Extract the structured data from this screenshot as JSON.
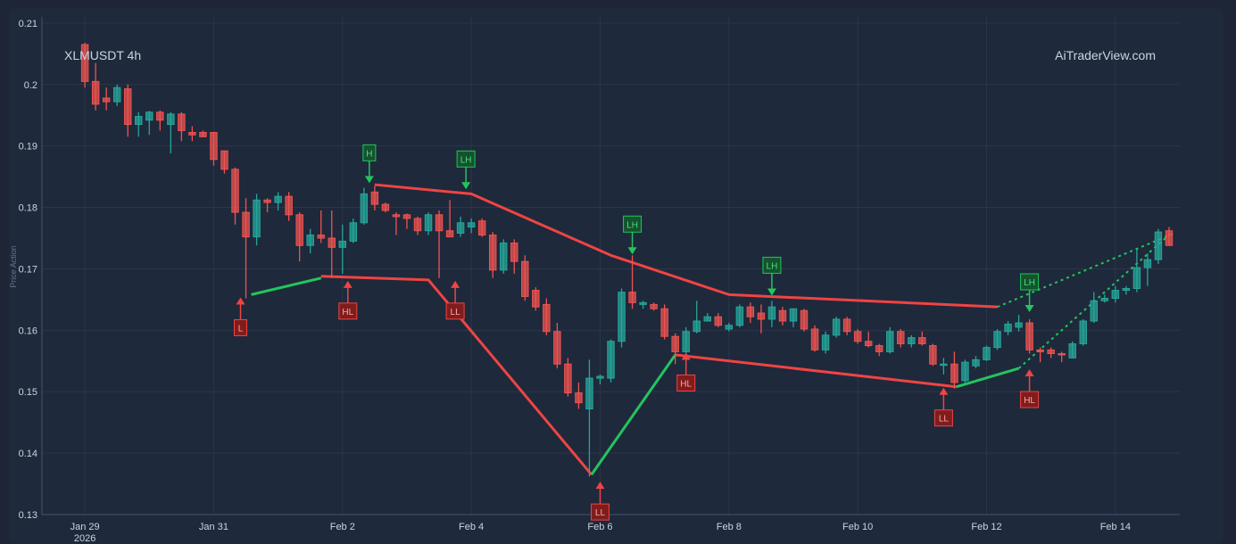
{
  "chart_data": {
    "type": "candlestick",
    "symbol_label": "XLMUSDT 4h",
    "watermark": "AiTraderView.com",
    "ylabel": "Price Action",
    "ylim": [
      0.13,
      0.211
    ],
    "yticks": [
      0.13,
      0.14,
      0.15,
      0.16,
      0.17,
      0.18,
      0.19,
      0.2,
      0.21
    ],
    "ytick_labels": [
      "0.13",
      "0.14",
      "0.15",
      "0.16",
      "0.17",
      "0.18",
      "0.19",
      "0.2",
      "0.21"
    ],
    "xlim": [
      -4,
      102
    ],
    "xticks": [
      {
        "x": 0,
        "label": "Jan 29",
        "sublabel": "2026"
      },
      {
        "x": 12,
        "label": "Jan 31"
      },
      {
        "x": 24,
        "label": "Feb 2"
      },
      {
        "x": 36,
        "label": "Feb 4"
      },
      {
        "x": 48,
        "label": "Feb 6"
      },
      {
        "x": 60,
        "label": "Feb 8"
      },
      {
        "x": 72,
        "label": "Feb 10"
      },
      {
        "x": 84,
        "label": "Feb 12"
      },
      {
        "x": 96,
        "label": "Feb 14"
      }
    ],
    "colors": {
      "up": "#26a69a",
      "down": "#ef5350",
      "resistance": "#ef4444",
      "support_red": "#ef4444",
      "support_green": "#22c55e",
      "projection": "#22c55e",
      "grid": "#2b3648",
      "background": "#1e293b"
    },
    "candles": [
      [
        0.2065,
        0.2068,
        0.1995,
        0.2005
      ],
      [
        0.2005,
        0.2035,
        0.1958,
        0.1968
      ],
      [
        0.1978,
        0.1995,
        0.1958,
        0.1972
      ],
      [
        0.1972,
        0.2,
        0.1965,
        0.1995
      ],
      [
        0.1993,
        0.2,
        0.1915,
        0.1935
      ],
      [
        0.1935,
        0.1955,
        0.1915,
        0.1948
      ],
      [
        0.1942,
        0.1957,
        0.1918,
        0.1955
      ],
      [
        0.1955,
        0.1958,
        0.1925,
        0.1942
      ],
      [
        0.1935,
        0.1955,
        0.1888,
        0.1952
      ],
      [
        0.1952,
        0.1955,
        0.1908,
        0.1925
      ],
      [
        0.1922,
        0.1932,
        0.1908,
        0.1918
      ],
      [
        0.1922,
        0.1925,
        0.1915,
        0.1915
      ],
      [
        0.1922,
        0.1922,
        0.1868,
        0.1878
      ],
      [
        0.1892,
        0.1892,
        0.1855,
        0.1862
      ],
      [
        0.1862,
        0.1865,
        0.1772,
        0.1792
      ],
      [
        0.1792,
        0.1815,
        0.1652,
        0.1752
      ],
      [
        0.1752,
        0.1822,
        0.1738,
        0.1812
      ],
      [
        0.1812,
        0.1815,
        0.1792,
        0.1808
      ],
      [
        0.1808,
        0.1825,
        0.1795,
        0.1818
      ],
      [
        0.1818,
        0.1825,
        0.1778,
        0.1788
      ],
      [
        0.1788,
        0.1792,
        0.1712,
        0.1738
      ],
      [
        0.1738,
        0.1765,
        0.1725,
        0.1755
      ],
      [
        0.1755,
        0.1795,
        0.1742,
        0.175
      ],
      [
        0.175,
        0.1795,
        0.1685,
        0.1735
      ],
      [
        0.1735,
        0.1772,
        0.1692,
        0.1745
      ],
      [
        0.1745,
        0.1782,
        0.1742,
        0.1775
      ],
      [
        0.1775,
        0.1832,
        0.1772,
        0.1822
      ],
      [
        0.1825,
        0.1835,
        0.1795,
        0.1805
      ],
      [
        0.1805,
        0.1808,
        0.1792,
        0.1795
      ],
      [
        0.1788,
        0.1792,
        0.1755,
        0.1785
      ],
      [
        0.1788,
        0.179,
        0.1765,
        0.1782
      ],
      [
        0.1782,
        0.1785,
        0.1755,
        0.1762
      ],
      [
        0.1762,
        0.1792,
        0.1755,
        0.1788
      ],
      [
        0.1788,
        0.1795,
        0.1685,
        0.1762
      ],
      [
        0.1762,
        0.1812,
        0.1755,
        0.1752
      ],
      [
        0.1758,
        0.1785,
        0.1752,
        0.1775
      ],
      [
        0.1768,
        0.1782,
        0.1758,
        0.1775
      ],
      [
        0.1778,
        0.1782,
        0.1752,
        0.1755
      ],
      [
        0.1755,
        0.176,
        0.1685,
        0.1698
      ],
      [
        0.1698,
        0.1748,
        0.1692,
        0.1742
      ],
      [
        0.1742,
        0.1748,
        0.1692,
        0.1712
      ],
      [
        0.1712,
        0.1722,
        0.1648,
        0.1655
      ],
      [
        0.1665,
        0.167,
        0.1632,
        0.1638
      ],
      [
        0.1642,
        0.1652,
        0.1592,
        0.1598
      ],
      [
        0.1598,
        0.1612,
        0.1538,
        0.1545
      ],
      [
        0.1545,
        0.1555,
        0.1492,
        0.1498
      ],
      [
        0.1498,
        0.1515,
        0.1472,
        0.1482
      ],
      [
        0.1472,
        0.1552,
        0.1362,
        0.1522
      ],
      [
        0.1522,
        0.1528,
        0.1512,
        0.1525
      ],
      [
        0.1522,
        0.1585,
        0.1515,
        0.1582
      ],
      [
        0.1582,
        0.1668,
        0.1572,
        0.1662
      ],
      [
        0.1662,
        0.1722,
        0.1635,
        0.1645
      ],
      [
        0.1642,
        0.1648,
        0.1635,
        0.1645
      ],
      [
        0.1642,
        0.1645,
        0.1632,
        0.1635
      ],
      [
        0.1635,
        0.1642,
        0.1585,
        0.159
      ],
      [
        0.159,
        0.1595,
        0.1545,
        0.1565
      ],
      [
        0.1565,
        0.1605,
        0.1552,
        0.1598
      ],
      [
        0.1598,
        0.1648,
        0.1595,
        0.1615
      ],
      [
        0.1615,
        0.1628,
        0.1615,
        0.1622
      ],
      [
        0.1622,
        0.1628,
        0.1605,
        0.1608
      ],
      [
        0.1602,
        0.1612,
        0.1598,
        0.1608
      ],
      [
        0.1608,
        0.1642,
        0.1605,
        0.1638
      ],
      [
        0.1638,
        0.1645,
        0.1612,
        0.1622
      ],
      [
        0.1628,
        0.1642,
        0.1595,
        0.1618
      ],
      [
        0.1618,
        0.1648,
        0.1605,
        0.1638
      ],
      [
        0.1632,
        0.1638,
        0.1608,
        0.1615
      ],
      [
        0.1615,
        0.1635,
        0.1605,
        0.1635
      ],
      [
        0.1632,
        0.1635,
        0.1598,
        0.1602
      ],
      [
        0.1602,
        0.1608,
        0.1565,
        0.1568
      ],
      [
        0.1568,
        0.1598,
        0.1562,
        0.1592
      ],
      [
        0.1592,
        0.1622,
        0.1588,
        0.1618
      ],
      [
        0.1618,
        0.1622,
        0.1592,
        0.1598
      ],
      [
        0.1598,
        0.1602,
        0.1578,
        0.1582
      ],
      [
        0.1582,
        0.1598,
        0.1572,
        0.1575
      ],
      [
        0.1575,
        0.1578,
        0.1558,
        0.1565
      ],
      [
        0.1565,
        0.1605,
        0.1562,
        0.1598
      ],
      [
        0.1598,
        0.1602,
        0.1572,
        0.1578
      ],
      [
        0.1578,
        0.1592,
        0.1572,
        0.1588
      ],
      [
        0.1588,
        0.1598,
        0.1575,
        0.1578
      ],
      [
        0.1575,
        0.1578,
        0.1542,
        0.1545
      ],
      [
        0.1545,
        0.1555,
        0.1528,
        0.1545
      ],
      [
        0.1545,
        0.1565,
        0.1505,
        0.1515
      ],
      [
        0.1518,
        0.1552,
        0.1512,
        0.1548
      ],
      [
        0.1542,
        0.1558,
        0.1538,
        0.1552
      ],
      [
        0.1552,
        0.1575,
        0.155,
        0.1572
      ],
      [
        0.1572,
        0.1602,
        0.1568,
        0.1598
      ],
      [
        0.1598,
        0.1615,
        0.1592,
        0.161
      ],
      [
        0.1605,
        0.1625,
        0.1598,
        0.1612
      ],
      [
        0.1612,
        0.1618,
        0.1562,
        0.1568
      ],
      [
        0.1568,
        0.1572,
        0.1548,
        0.1565
      ],
      [
        0.1568,
        0.1572,
        0.1555,
        0.1562
      ],
      [
        0.1562,
        0.1565,
        0.1548,
        0.156
      ],
      [
        0.1555,
        0.1582,
        0.1555,
        0.1578
      ],
      [
        0.1578,
        0.1618,
        0.1575,
        0.1615
      ],
      [
        0.1615,
        0.1662,
        0.1612,
        0.1648
      ],
      [
        0.1648,
        0.1658,
        0.1645,
        0.1652
      ],
      [
        0.1652,
        0.1672,
        0.1645,
        0.1665
      ],
      [
        0.1665,
        0.1672,
        0.1658,
        0.1668
      ],
      [
        0.1668,
        0.1732,
        0.1662,
        0.1702
      ],
      [
        0.1702,
        0.1725,
        0.1672,
        0.1715
      ],
      [
        0.1715,
        0.1765,
        0.1708,
        0.176
      ],
      [
        0.1762,
        0.1768,
        0.1738,
        0.1738
      ]
    ],
    "resistance_line": [
      [
        27,
        0.1837
      ],
      [
        36,
        0.1822
      ],
      [
        49,
        0.1722
      ],
      [
        60,
        0.1658
      ],
      [
        85,
        0.1638
      ]
    ],
    "support_line_red": [
      [
        22,
        0.1688
      ],
      [
        32,
        0.1682
      ],
      [
        47.2,
        0.1365
      ]
    ],
    "support_green_segments": [
      [
        [
          15.5,
          0.1658
        ],
        [
          22,
          0.1685
        ]
      ],
      [
        [
          47.2,
          0.1365
        ],
        [
          55,
          0.156
        ]
      ],
      [
        [
          81.2,
          0.1508
        ],
        [
          87,
          0.1538
        ]
      ]
    ],
    "support_line_red_2": [
      [
        55,
        0.156
      ],
      [
        81.2,
        0.1508
      ]
    ],
    "projection_lines": [
      [
        [
          85,
          0.1638
        ],
        [
          101.5,
          0.1758
        ]
      ],
      [
        [
          87,
          0.1538
        ],
        [
          101,
          0.1755
        ]
      ]
    ],
    "markers": [
      {
        "label": "L",
        "x": 14.5,
        "y": 0.1655,
        "kind": "low"
      },
      {
        "label": "HL",
        "x": 24.5,
        "y": 0.1682,
        "kind": "low"
      },
      {
        "label": "LL",
        "x": 34.5,
        "y": 0.1682,
        "kind": "low"
      },
      {
        "label": "LL",
        "x": 48,
        "y": 0.1355,
        "kind": "low"
      },
      {
        "label": "HL",
        "x": 56,
        "y": 0.1565,
        "kind": "low"
      },
      {
        "label": "LL",
        "x": 80,
        "y": 0.1508,
        "kind": "low"
      },
      {
        "label": "HL",
        "x": 88,
        "y": 0.1538,
        "kind": "low"
      },
      {
        "label": "H",
        "x": 26.5,
        "y": 0.1838,
        "kind": "high"
      },
      {
        "label": "LH",
        "x": 35.5,
        "y": 0.1828,
        "kind": "high"
      },
      {
        "label": "LH",
        "x": 51,
        "y": 0.1722,
        "kind": "high"
      },
      {
        "label": "LH",
        "x": 64,
        "y": 0.1655,
        "kind": "high"
      },
      {
        "label": "LH",
        "x": 88,
        "y": 0.1628,
        "kind": "high"
      }
    ]
  }
}
